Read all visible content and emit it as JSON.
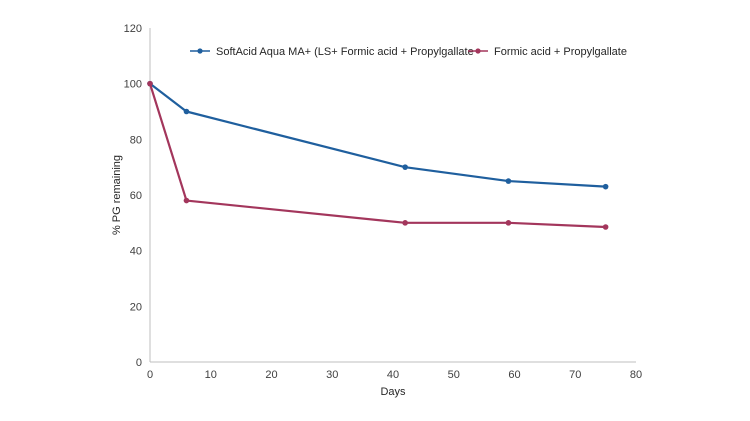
{
  "chart_data": {
    "type": "line",
    "xlabel": "Days",
    "ylabel": "% PG remaining",
    "xlim": [
      0,
      80
    ],
    "ylim": [
      0,
      120
    ],
    "xticks": [
      0,
      10,
      20,
      30,
      40,
      50,
      60,
      70,
      80
    ],
    "yticks": [
      0,
      20,
      40,
      60,
      80,
      100,
      120
    ],
    "grid": false,
    "legend_position": "top",
    "series": [
      {
        "name": "SoftAcid Aqua MA+ (LS+ Formic acid + Propylgallate",
        "color": "#1F5F9E",
        "x": [
          0,
          6,
          42,
          59,
          75
        ],
        "y": [
          100,
          90,
          70,
          65,
          63
        ]
      },
      {
        "name": "Formic acid + Propylgallate",
        "color": "#A3365C",
        "x": [
          0,
          6,
          42,
          59,
          75
        ],
        "y": [
          100,
          58,
          50,
          50,
          48.5
        ]
      }
    ]
  }
}
